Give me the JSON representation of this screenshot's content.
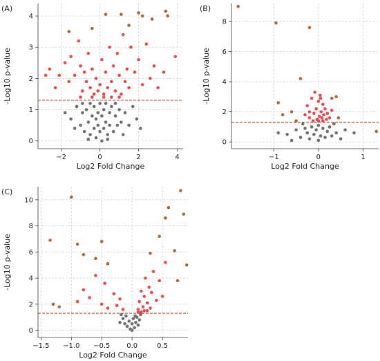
{
  "chart_data": [
    {
      "panel_label": "(A)",
      "type": "scatter",
      "title": "",
      "xlabel": "Log2 Fold Change",
      "ylabel": "-Log10 p-value",
      "xlim": [
        -3.2,
        4.3
      ],
      "ylim": [
        -0.25,
        4.4
      ],
      "xticks": [
        -2,
        0,
        2,
        4
      ],
      "xtick_labels": [
        "−2",
        "0",
        "2",
        "4"
      ],
      "yticks": [
        0,
        1,
        2,
        3,
        4
      ],
      "ytick_labels": [
        "0",
        "1",
        "2",
        "3",
        "4"
      ],
      "threshold_y": 1.3,
      "grid": true,
      "colors": {
        "significant": "#e8494b",
        "nonsignificant": "#6e6e6e",
        "extreme": "#a86a3a",
        "threshold": "#b03a1a"
      },
      "points_significant": [
        [
          -2.8,
          2.1
        ],
        [
          -2.6,
          2.3
        ],
        [
          -2.3,
          1.7
        ],
        [
          -2.1,
          2.1
        ],
        [
          -1.8,
          2.5
        ],
        [
          -1.6,
          1.9
        ],
        [
          -1.5,
          2.7
        ],
        [
          -1.3,
          2.1
        ],
        [
          -1.1,
          3.2
        ],
        [
          -1.0,
          2.4
        ],
        [
          -0.9,
          1.6
        ],
        [
          -0.8,
          2.2
        ],
        [
          -0.7,
          1.9
        ],
        [
          -0.6,
          2.8
        ],
        [
          -0.5,
          1.7
        ],
        [
          -0.4,
          2.3
        ],
        [
          -0.3,
          1.5
        ],
        [
          -0.2,
          2.0
        ],
        [
          -0.1,
          1.6
        ],
        [
          0.0,
          1.8
        ],
        [
          0.1,
          2.6
        ],
        [
          0.2,
          1.5
        ],
        [
          0.3,
          2.2
        ],
        [
          0.4,
          1.7
        ],
        [
          0.5,
          3.0
        ],
        [
          0.6,
          1.9
        ],
        [
          0.7,
          2.4
        ],
        [
          0.8,
          1.6
        ],
        [
          0.9,
          2.8
        ],
        [
          1.0,
          2.1
        ],
        [
          1.1,
          1.5
        ],
        [
          1.2,
          3.4
        ],
        [
          1.3,
          1.9
        ],
        [
          1.4,
          2.3
        ],
        [
          1.5,
          1.7
        ],
        [
          1.6,
          3.0
        ],
        [
          1.8,
          2.2
        ],
        [
          2.0,
          2.6
        ],
        [
          2.2,
          1.8
        ],
        [
          2.4,
          3.1
        ],
        [
          2.6,
          2.0
        ],
        [
          2.8,
          2.4
        ],
        [
          3.0,
          1.7
        ],
        [
          3.3,
          2.2
        ],
        [
          3.9,
          2.7
        ],
        [
          -0.4,
          1.4
        ],
        [
          0.2,
          1.4
        ],
        [
          0.6,
          1.4
        ],
        [
          1.0,
          1.4
        ],
        [
          -1.0,
          1.4
        ]
      ],
      "points_extreme": [
        [
          0.3,
          4.05
        ],
        [
          1.1,
          4.05
        ],
        [
          2.0,
          4.1
        ],
        [
          2.2,
          4.0
        ],
        [
          3.4,
          4.15
        ],
        [
          3.5,
          4.0
        ],
        [
          2.7,
          3.9
        ],
        [
          1.5,
          3.7
        ],
        [
          -0.4,
          3.6
        ],
        [
          -1.6,
          3.5
        ]
      ],
      "points_nonsignificant": [
        [
          -1.8,
          0.9
        ],
        [
          -1.5,
          0.7
        ],
        [
          -1.2,
          1.1
        ],
        [
          -1.0,
          0.5
        ],
        [
          -0.9,
          0.9
        ],
        [
          -0.8,
          0.3
        ],
        [
          -0.7,
          1.0
        ],
        [
          -0.6,
          0.6
        ],
        [
          -0.5,
          0.2
        ],
        [
          -0.5,
          1.2
        ],
        [
          -0.4,
          0.8
        ],
        [
          -0.3,
          0.4
        ],
        [
          -0.3,
          1.1
        ],
        [
          -0.2,
          0.7
        ],
        [
          -0.2,
          0.1
        ],
        [
          -0.1,
          0.9
        ],
        [
          -0.1,
          0.5
        ],
        [
          0.0,
          1.2
        ],
        [
          0.0,
          0.3
        ],
        [
          0.1,
          0.8
        ],
        [
          0.1,
          0.0
        ],
        [
          0.2,
          1.0
        ],
        [
          0.2,
          0.4
        ],
        [
          0.3,
          0.6
        ],
        [
          0.3,
          1.2
        ],
        [
          0.4,
          0.2
        ],
        [
          0.5,
          0.9
        ],
        [
          0.5,
          0.5
        ],
        [
          0.6,
          1.1
        ],
        [
          0.7,
          0.3
        ],
        [
          0.8,
          0.8
        ],
        [
          0.9,
          0.5
        ],
        [
          1.0,
          1.0
        ],
        [
          1.1,
          0.6
        ],
        [
          1.2,
          0.2
        ],
        [
          1.3,
          0.9
        ],
        [
          1.5,
          0.5
        ],
        [
          1.7,
          1.1
        ],
        [
          1.9,
          0.7
        ],
        [
          2.1,
          0.4
        ],
        [
          -1.3,
          0.4
        ],
        [
          -0.6,
          0.05
        ],
        [
          0.4,
          0.05
        ],
        [
          0.8,
          1.2
        ],
        [
          -0.9,
          1.2
        ]
      ]
    },
    {
      "panel_label": "(B)",
      "type": "scatter",
      "title": "",
      "xlabel": "Log2 Fold Change",
      "ylabel": "-Log10 p-value",
      "xlim": [
        -1.95,
        1.35
      ],
      "ylim": [
        -0.45,
        9.2
      ],
      "xticks": [
        -1,
        0,
        1
      ],
      "xtick_labels": [
        "−1",
        "0",
        "1"
      ],
      "yticks": [
        0,
        2,
        4,
        6,
        8
      ],
      "ytick_labels": [
        "0",
        "2",
        "4",
        "6",
        "8"
      ],
      "threshold_y": 1.3,
      "grid": true,
      "colors": {
        "significant": "#e8494b",
        "nonsignificant": "#6e6e6e",
        "extreme": "#a86a3a",
        "threshold": "#b03a1a"
      },
      "points_significant": [
        [
          -0.3,
          1.8
        ],
        [
          -0.25,
          2.4
        ],
        [
          -0.2,
          1.6
        ],
        [
          -0.15,
          2.9
        ],
        [
          -0.1,
          1.9
        ],
        [
          -0.08,
          3.3
        ],
        [
          -0.05,
          2.2
        ],
        [
          -0.03,
          1.5
        ],
        [
          0.0,
          2.7
        ],
        [
          0.02,
          1.7
        ],
        [
          0.04,
          3.1
        ],
        [
          0.06,
          2.0
        ],
        [
          0.08,
          1.6
        ],
        [
          0.1,
          2.5
        ],
        [
          0.12,
          1.8
        ],
        [
          0.15,
          2.2
        ],
        [
          0.18,
          1.5
        ],
        [
          0.2,
          1.9
        ],
        [
          0.25,
          1.6
        ],
        [
          0.3,
          2.1
        ],
        [
          -0.12,
          1.4
        ],
        [
          0.0,
          1.4
        ],
        [
          0.1,
          1.4
        ],
        [
          -0.2,
          2.0
        ],
        [
          0.05,
          2.9
        ]
      ],
      "points_extreme": [
        [
          -1.8,
          9.0
        ],
        [
          -0.95,
          7.9
        ],
        [
          -0.2,
          7.6
        ],
        [
          -0.4,
          4.2
        ],
        [
          -0.9,
          2.6
        ],
        [
          -0.8,
          1.8
        ],
        [
          0.3,
          2.9
        ],
        [
          -0.6,
          2.0
        ],
        [
          0.45,
          1.6
        ],
        [
          -0.5,
          1.4
        ],
        [
          1.3,
          0.7
        ],
        [
          0.4,
          3.0
        ]
      ],
      "points_nonsignificant": [
        [
          -0.9,
          0.6
        ],
        [
          -0.7,
          0.5
        ],
        [
          -0.5,
          0.8
        ],
        [
          -0.4,
          0.3
        ],
        [
          -0.3,
          0.9
        ],
        [
          -0.25,
          0.6
        ],
        [
          -0.2,
          0.2
        ],
        [
          -0.15,
          1.0
        ],
        [
          -0.1,
          0.5
        ],
        [
          -0.05,
          0.8
        ],
        [
          0.0,
          0.1
        ],
        [
          0.0,
          1.1
        ],
        [
          0.05,
          0.4
        ],
        [
          0.1,
          0.9
        ],
        [
          0.15,
          0.3
        ],
        [
          0.2,
          0.7
        ],
        [
          0.25,
          1.0
        ],
        [
          0.3,
          0.4
        ],
        [
          0.4,
          0.6
        ],
        [
          0.5,
          0.2
        ],
        [
          0.6,
          0.8
        ],
        [
          -0.6,
          0.1
        ],
        [
          0.35,
          1.2
        ],
        [
          -0.35,
          1.2
        ],
        [
          0.8,
          0.6
        ]
      ]
    },
    {
      "panel_label": "(C)",
      "type": "scatter",
      "title": "",
      "xlabel": "Log2 Fold Change",
      "ylabel": "-Log10 p-value",
      "xlim": [
        -1.55,
        0.92
      ],
      "ylim": [
        -0.55,
        11.0
      ],
      "xticks": [
        -1.5,
        -1.0,
        -0.5,
        0.0,
        0.5
      ],
      "xtick_labels": [
        "−1.5",
        "−1.0",
        "−0.5",
        "0.0",
        "0.5"
      ],
      "yticks": [
        0,
        2,
        4,
        6,
        8,
        10
      ],
      "ytick_labels": [
        "0",
        "2",
        "4",
        "6",
        "8",
        "10"
      ],
      "threshold_y": 1.3,
      "grid": true,
      "colors": {
        "significant": "#e8494b",
        "nonsignificant": "#6e6e6e",
        "extreme": "#a86a3a",
        "threshold": "#b03a1a"
      },
      "points_significant": [
        [
          -0.9,
          2.2
        ],
        [
          -0.8,
          3.1
        ],
        [
          -0.7,
          2.5
        ],
        [
          -0.6,
          4.2
        ],
        [
          -0.5,
          2.0
        ],
        [
          -0.45,
          3.6
        ],
        [
          -0.4,
          1.7
        ],
        [
          -0.3,
          2.8
        ],
        [
          -0.25,
          1.9
        ],
        [
          -0.2,
          2.4
        ],
        [
          0.1,
          1.6
        ],
        [
          0.12,
          2.2
        ],
        [
          0.15,
          3.0
        ],
        [
          0.18,
          1.8
        ],
        [
          0.2,
          2.6
        ],
        [
          0.22,
          4.0
        ],
        [
          0.25,
          2.1
        ],
        [
          0.28,
          3.3
        ],
        [
          0.3,
          1.7
        ],
        [
          0.32,
          2.9
        ],
        [
          0.35,
          4.5
        ],
        [
          0.4,
          2.3
        ],
        [
          0.45,
          3.8
        ],
        [
          0.5,
          2.6
        ],
        [
          0.55,
          5.2
        ],
        [
          0.15,
          1.4
        ],
        [
          0.2,
          1.5
        ],
        [
          0.1,
          1.4
        ],
        [
          0.25,
          1.5
        ],
        [
          -0.15,
          1.6
        ]
      ],
      "points_extreme": [
        [
          -1.35,
          6.9
        ],
        [
          -1.0,
          10.2
        ],
        [
          -1.2,
          1.8
        ],
        [
          -1.3,
          2.0
        ],
        [
          -0.9,
          6.6
        ],
        [
          -0.8,
          5.8
        ],
        [
          -0.5,
          6.8
        ],
        [
          -0.4,
          5.1
        ],
        [
          0.55,
          8.6
        ],
        [
          0.6,
          9.4
        ],
        [
          0.7,
          6.1
        ],
        [
          0.8,
          10.7
        ],
        [
          0.85,
          8.9
        ],
        [
          0.9,
          5.0
        ],
        [
          0.75,
          3.8
        ],
        [
          0.45,
          7.2
        ],
        [
          -0.6,
          5.5
        ],
        [
          0.3,
          5.9
        ]
      ],
      "points_nonsignificant": [
        [
          -0.15,
          0.9
        ],
        [
          -0.12,
          0.5
        ],
        [
          -0.1,
          1.1
        ],
        [
          -0.08,
          0.3
        ],
        [
          -0.05,
          0.7
        ],
        [
          -0.03,
          0.1
        ],
        [
          0.0,
          0.5
        ],
        [
          0.02,
          0.9
        ],
        [
          0.04,
          0.2
        ],
        [
          0.06,
          0.6
        ],
        [
          0.08,
          1.0
        ],
        [
          0.1,
          0.4
        ],
        [
          0.12,
          0.8
        ],
        [
          -0.2,
          0.6
        ],
        [
          0.0,
          0.0
        ],
        [
          0.14,
          1.2
        ],
        [
          -0.18,
          1.2
        ],
        [
          0.05,
          1.1
        ]
      ]
    }
  ]
}
